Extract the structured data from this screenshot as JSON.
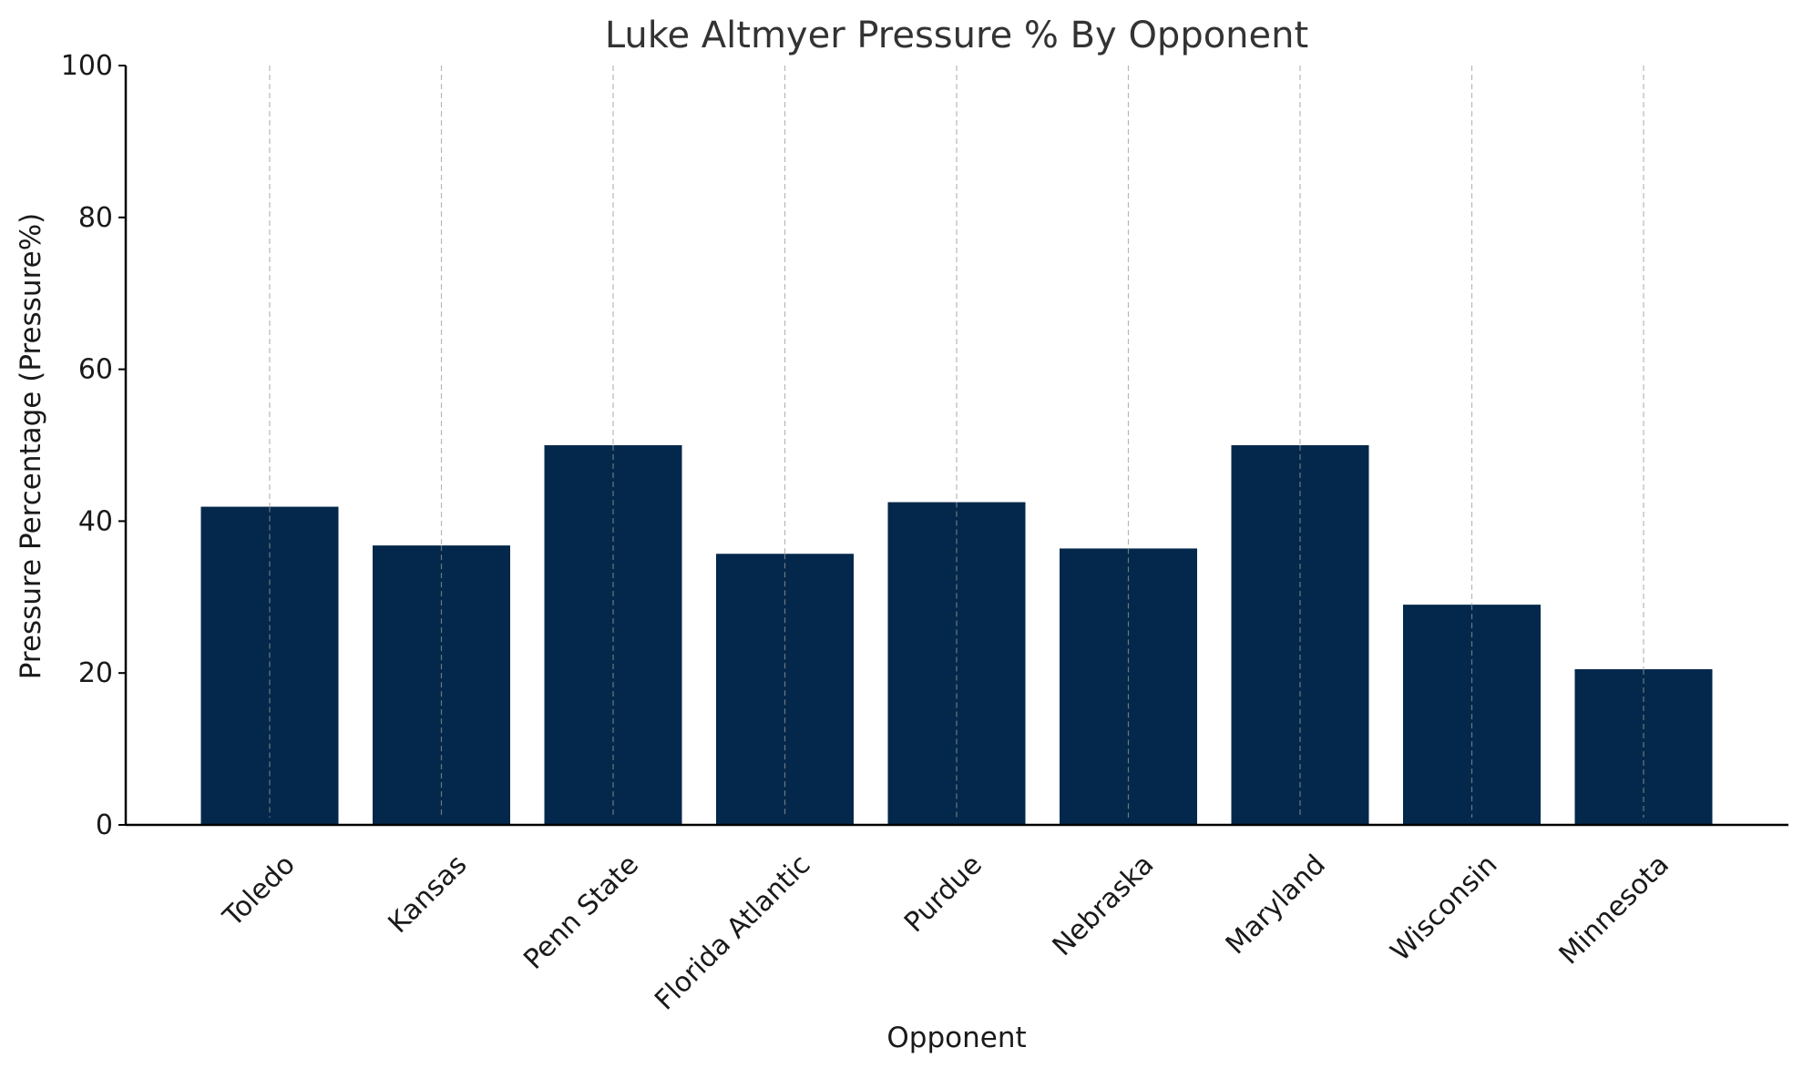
{
  "chart_data": {
    "type": "bar",
    "title": "Luke Altmyer Pressure % By Opponent",
    "xlabel": "Opponent",
    "ylabel": "Pressure Percentage (Pressure%)",
    "categories": [
      "Toledo",
      "Kansas",
      "Penn State",
      "Florida Atlantic",
      "Purdue",
      "Nebraska",
      "Maryland",
      "Wisconsin",
      "Minnesota"
    ],
    "values": [
      41.9,
      36.8,
      50.0,
      35.7,
      42.5,
      36.4,
      50.0,
      29.0,
      20.5
    ],
    "ylim": [
      0,
      100
    ],
    "yticks": [
      0,
      20,
      40,
      60,
      80,
      100
    ],
    "bar_color": "#03284b",
    "grid": "x-axis dashed vertical lines",
    "legend": "none"
  }
}
